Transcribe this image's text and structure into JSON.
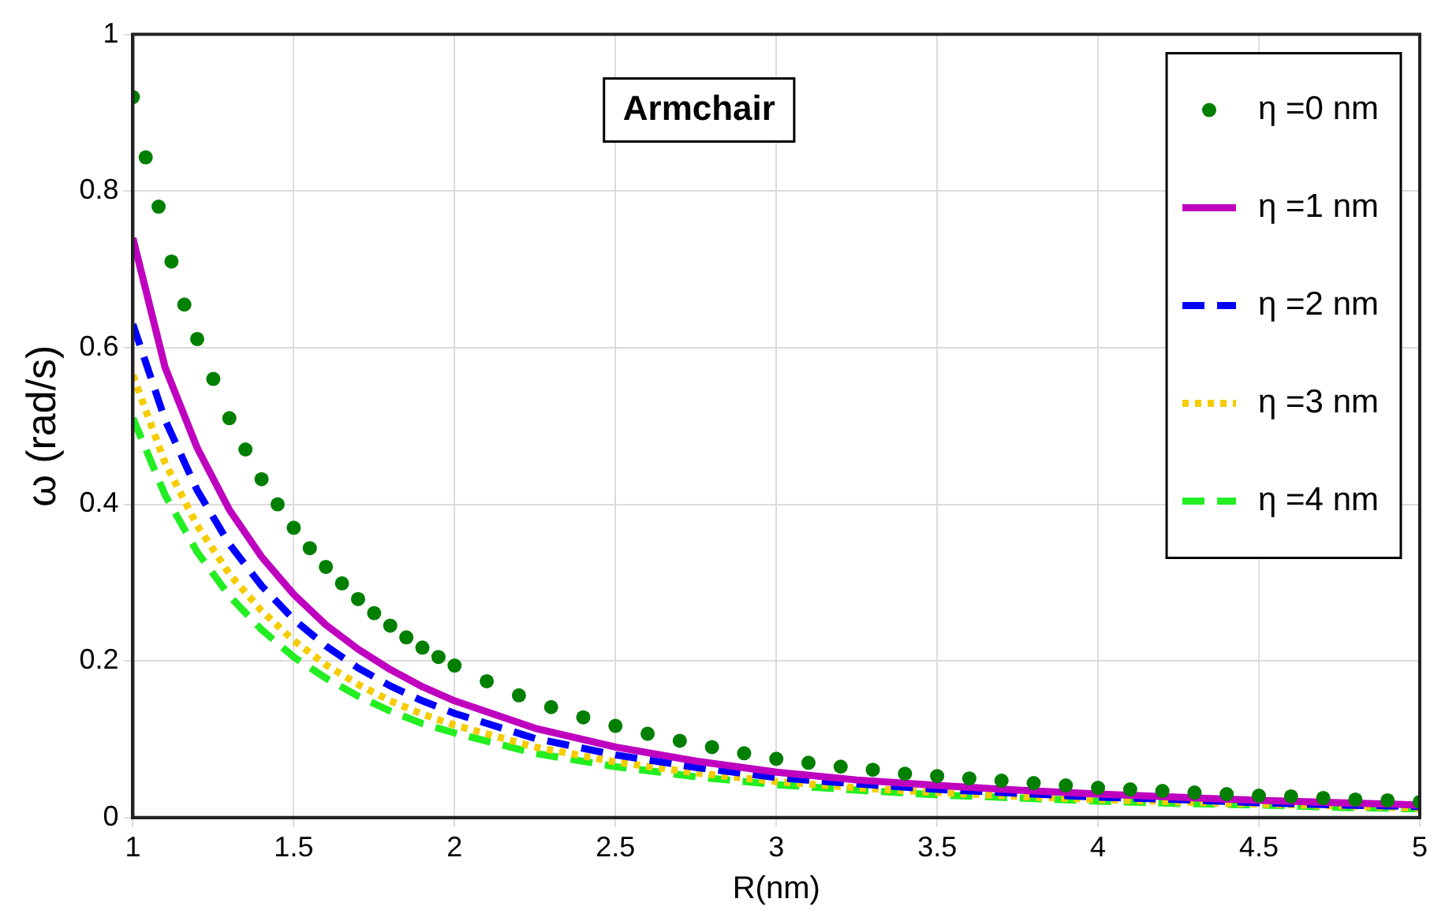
{
  "chart_data": {
    "type": "line",
    "xlabel": "R(nm)",
    "ylabel": "ω (rad/s)",
    "annotations": [
      "Armchair"
    ],
    "xlim": [
      1,
      5
    ],
    "xticks": [
      1,
      1.5,
      2,
      2.5,
      3,
      3.5,
      4,
      4.5,
      5
    ],
    "ylim": [
      0,
      1
    ],
    "yticks": [
      0,
      0.2,
      0.4,
      0.6,
      0.8,
      1
    ],
    "grid": true,
    "legend": "top right",
    "series": [
      {
        "name": "η =0 nm",
        "type": "scatter",
        "marker": "circle",
        "color": "#007f00",
        "x": [
          1,
          1.04,
          1.08,
          1.12,
          1.16,
          1.2,
          1.25,
          1.3,
          1.35,
          1.4,
          1.45,
          1.5,
          1.55,
          1.6,
          1.65,
          1.7,
          1.75,
          1.8,
          1.85,
          1.9,
          1.95,
          2,
          2.1,
          2.2,
          2.3,
          2.4,
          2.5,
          2.6,
          2.7,
          2.8,
          2.9,
          3,
          3.1,
          3.2,
          3.3,
          3.4,
          3.5,
          3.6,
          3.7,
          3.8,
          3.9,
          4,
          4.1,
          4.2,
          4.3,
          4.4,
          4.5,
          4.6,
          4.7,
          4.8,
          4.9,
          5
        ],
        "values": [
          0.92,
          0.843,
          0.78,
          0.71,
          0.655,
          0.611,
          0.56,
          0.51,
          0.47,
          0.432,
          0.4,
          0.37,
          0.344,
          0.32,
          0.299,
          0.279,
          0.261,
          0.245,
          0.23,
          0.217,
          0.205,
          0.194,
          0.174,
          0.156,
          0.141,
          0.128,
          0.117,
          0.107,
          0.098,
          0.09,
          0.082,
          0.075,
          0.07,
          0.065,
          0.061,
          0.056,
          0.053,
          0.05,
          0.047,
          0.044,
          0.041,
          0.038,
          0.036,
          0.034,
          0.032,
          0.03,
          0.028,
          0.027,
          0.025,
          0.023,
          0.022,
          0.02
        ]
      },
      {
        "name": "η =1 nm",
        "line_style": "solid",
        "color": "#bf00bf",
        "x": [
          1,
          1.1,
          1.2,
          1.3,
          1.4,
          1.5,
          1.6,
          1.7,
          1.8,
          1.9,
          2,
          2.25,
          2.5,
          2.75,
          3,
          3.25,
          3.5,
          3.75,
          4,
          4.25,
          4.5,
          4.75,
          5
        ],
        "values": [
          0.74,
          0.575,
          0.472,
          0.393,
          0.333,
          0.285,
          0.246,
          0.215,
          0.189,
          0.167,
          0.149,
          0.114,
          0.09,
          0.072,
          0.058,
          0.048,
          0.041,
          0.035,
          0.03,
          0.026,
          0.022,
          0.019,
          0.016
        ]
      },
      {
        "name": "η =2 nm",
        "line_style": "dashed",
        "color": "#0000ff",
        "x": [
          1,
          1.1,
          1.2,
          1.3,
          1.4,
          1.5,
          1.6,
          1.7,
          1.8,
          1.9,
          2,
          2.25,
          2.5,
          2.75,
          3,
          3.25,
          3.5,
          3.75,
          4,
          4.25,
          4.5,
          4.75,
          5
        ],
        "values": [
          0.63,
          0.508,
          0.418,
          0.349,
          0.296,
          0.253,
          0.219,
          0.191,
          0.168,
          0.149,
          0.133,
          0.101,
          0.08,
          0.064,
          0.051,
          0.043,
          0.036,
          0.031,
          0.026,
          0.023,
          0.019,
          0.016,
          0.014
        ]
      },
      {
        "name": "η =3 nm",
        "line_style": "dotted",
        "color": "#f5cc00",
        "x": [
          1,
          1.1,
          1.2,
          1.3,
          1.4,
          1.5,
          1.6,
          1.7,
          1.8,
          1.9,
          2,
          2.25,
          2.5,
          2.75,
          3,
          3.25,
          3.5,
          3.75,
          4,
          4.25,
          4.5,
          4.75,
          5
        ],
        "values": [
          0.565,
          0.453,
          0.373,
          0.311,
          0.264,
          0.226,
          0.195,
          0.17,
          0.149,
          0.132,
          0.118,
          0.09,
          0.071,
          0.057,
          0.046,
          0.038,
          0.032,
          0.027,
          0.023,
          0.02,
          0.017,
          0.015,
          0.012
        ]
      },
      {
        "name": "η =4 nm",
        "line_style": "dashed",
        "color": "#22ee22",
        "x": [
          1,
          1.1,
          1.2,
          1.3,
          1.4,
          1.5,
          1.6,
          1.7,
          1.8,
          1.9,
          2,
          2.25,
          2.5,
          2.75,
          3,
          3.25,
          3.5,
          3.75,
          4,
          4.25,
          4.5,
          4.75,
          5
        ],
        "values": [
          0.51,
          0.412,
          0.339,
          0.283,
          0.24,
          0.205,
          0.178,
          0.155,
          0.136,
          0.12,
          0.108,
          0.082,
          0.065,
          0.052,
          0.042,
          0.035,
          0.029,
          0.025,
          0.021,
          0.018,
          0.016,
          0.013,
          0.011
        ]
      }
    ]
  }
}
